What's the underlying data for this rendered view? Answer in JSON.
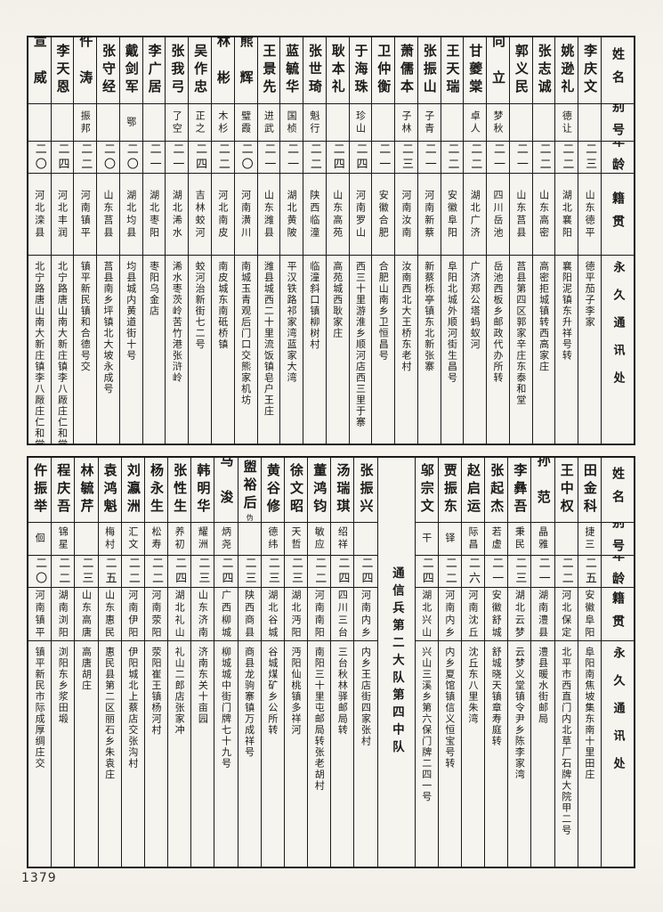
{
  "page_number": "1379",
  "colors": {
    "paper": "#f5f3ec",
    "ink": "#1a1a1a"
  },
  "headers": {
    "name": "姓名",
    "alias": "别号",
    "age": "年龄",
    "origin": "籍贯",
    "address": "永久通讯处"
  },
  "sections": [
    {
      "people": [
        {
          "name": "李庆文",
          "alias": "",
          "age": "二三",
          "origin": "山东德平",
          "address": "德平茄子李家"
        },
        {
          "name": "姚逊礼",
          "alias": "德让",
          "age": "二二",
          "origin": "湖北襄阳",
          "address": "襄阳泥镇东升祥号转"
        },
        {
          "name": "张志诚",
          "alias": "",
          "age": "二二",
          "origin": "山东高密",
          "address": "高密拒城镇转西高家庄"
        },
        {
          "name": "郭义民",
          "alias": "",
          "age": "二一",
          "origin": "山东莒县",
          "address": "莒县第四区郭家辛庄东泰和堂"
        },
        {
          "name": "向立",
          "alias": "梦秋",
          "age": "二一",
          "origin": "四川岳池",
          "address": "岳池西板乡邮政代办所转"
        },
        {
          "name": "甘夔棠",
          "alias": "卓人",
          "age": "二二",
          "origin": "湖北广济",
          "address": "广济郑公塔蚂蚁河"
        },
        {
          "name": "王天瑞",
          "alias": "",
          "age": "二二",
          "origin": "安徽阜阳",
          "address": "阜阳北城外顺河街生昌号"
        },
        {
          "name": "张振山",
          "alias": "子青",
          "age": "二一",
          "origin": "河南新蔡",
          "address": "新蔡栎亭镇东北新张寨"
        },
        {
          "name": "萧儒本",
          "alias": "子林",
          "age": "二三",
          "origin": "河南汝南",
          "address": "汝南西北大王桥东老村"
        },
        {
          "name": "卫仲衡",
          "alias": "",
          "age": "二一",
          "origin": "安徽合肥",
          "address": "合肥山南乡卫恒昌号"
        },
        {
          "name": "于海珠",
          "alias": "珍山",
          "age": "二四",
          "origin": "河南罗山",
          "address": "西三十里游淮乡顺河店西三里于寨"
        },
        {
          "name": "耿本礼",
          "alias": "",
          "age": "二四",
          "origin": "山东高苑",
          "address": "高苑城西耿家庄"
        },
        {
          "name": "张世琦",
          "alias": "魁行",
          "age": "二二",
          "origin": "陕西临潼",
          "address": "临潼斜口镇柳树村"
        },
        {
          "name": "蓝毓华",
          "alias": "国桢",
          "age": "二一",
          "origin": "湖北黄陂",
          "address": "平汉铁路祁家湾蓝家大湾"
        },
        {
          "name": "王景先",
          "alias": "进武",
          "age": "二一",
          "origin": "山东潍县",
          "address": "潍县城西二十里流饭镇皂户王庄"
        },
        {
          "name": "熊辉",
          "alias": "璧霞",
          "age": "二〇",
          "origin": "河南潢川",
          "address": "南城玉青观后门口交熊家机坊"
        },
        {
          "name": "林彬",
          "alias": "木杉",
          "age": "二二",
          "origin": "河北南皮",
          "address": "南皮城东南砥桥镇"
        },
        {
          "name": "吴作忠",
          "alias": "正之",
          "age": "二四",
          "origin": "吉林蛟河",
          "address": "蛟河治新街七二号"
        },
        {
          "name": "张我弓",
          "alias": "了空",
          "age": "二一",
          "origin": "湖北浠水",
          "address": "浠水枣茨岭苦竹港张浒岭"
        },
        {
          "name": "李广居",
          "alias": "",
          "age": "二一",
          "origin": "湖北枣阳",
          "address": "枣阳乌金店"
        },
        {
          "name": "戴剑军",
          "alias": "鄂",
          "age": "二〇",
          "origin": "湖北均县",
          "address": "均县城内黄道街十号"
        },
        {
          "name": "张守经",
          "alias": "",
          "age": "二〇",
          "origin": "山东莒县",
          "address": "莒县南乡坪镇北大坡永成号"
        },
        {
          "name": "仵涛",
          "alias": "振邦",
          "age": "二二",
          "origin": "河南镇平",
          "address": "镇平新民镇和合德号交"
        },
        {
          "name": "李天恩",
          "alias": "",
          "age": "二四",
          "origin": "河北丰润",
          "address": "北宁路唐山南大新庄镇李八厰庄仁和堂"
        },
        {
          "name": "宣威",
          "alias": "",
          "age": "二〇",
          "origin": "河北滦县",
          "address": "北宁路唐山南大新庄镇李八厰庄仁和堂"
        }
      ]
    },
    {
      "people": [
        {
          "name": "田金科",
          "alias": "捷三",
          "age": "二五",
          "origin": "安徽阜阳",
          "address": "阜阳南焦坡集东南十里田庄"
        },
        {
          "name": "王中权",
          "alias": "",
          "age": "二二",
          "origin": "河北保定",
          "address": "北平市西直门内北草厂石牌大院甲二号"
        },
        {
          "name": "孙范",
          "alias": "晶雅",
          "age": "二一",
          "origin": "湖南澧县",
          "address": "澧县暖水街邮局"
        },
        {
          "name": "李彝吾",
          "alias": "秉民",
          "age": "二三",
          "origin": "湖北云梦",
          "address": "云梦义堂镇令尹乡陈李家湾"
        },
        {
          "name": "张起杰",
          "alias": "若虚",
          "age": "二一",
          "origin": "安徽舒城",
          "address": "舒城晓天镇章寿庭转"
        },
        {
          "name": "赵启运",
          "alias": "际昌",
          "age": "二六",
          "origin": "河南沈丘",
          "address": "沈丘东八里朱湾"
        },
        {
          "name": "贾振东",
          "alias": "铎",
          "age": "二二",
          "origin": "河南内乡",
          "address": "内乡夏馆镇信义恒宝号转"
        },
        {
          "name": "邬宗文",
          "alias": "干",
          "age": "二四",
          "origin": "湖北兴山",
          "address": "兴山三溪乡第六保门牌二四一号"
        },
        {
          "type": "unit",
          "label": "通信兵第二大队第四中队"
        },
        {
          "name": "张振兴",
          "alias": "",
          "age": "二四",
          "origin": "河南内乡",
          "address": "内乡王店街四家张村"
        },
        {
          "name": "汤瑞琪",
          "alias": "绍祥",
          "age": "二四",
          "origin": "四川三台",
          "address": "三台秋林驿邮局转"
        },
        {
          "name": "董鸿钧",
          "alias": "敏应",
          "age": "二二",
          "origin": "河南南阳",
          "address": "南阳三十里屯邮局转张老胡村"
        },
        {
          "name": "徐文昭",
          "alias": "天哲",
          "age": "二三",
          "origin": "湖北沔阳",
          "address": "沔阳仙桃镇多祥河"
        },
        {
          "name": "黄谷修",
          "alias": "德纬",
          "age": "二三",
          "origin": "湖北谷城",
          "address": "谷城煤矿乡公所转"
        },
        {
          "name": "盥裕后",
          "alias": "",
          "note": "伪",
          "age": "二三",
          "origin": "陕西商县",
          "address": "商县龙驹寨镇万成祥号"
        },
        {
          "name": "马浚",
          "alias": "炳尧",
          "age": "二四",
          "origin": "广西柳城",
          "address": "柳城城中街门牌七十九号"
        },
        {
          "name": "韩明华",
          "alias": "耀洲",
          "age": "二三",
          "origin": "山东济南",
          "address": "济南东关十亩园"
        },
        {
          "name": "张性生",
          "alias": "养初",
          "age": "二四",
          "origin": "湖北礼山",
          "address": "礼山二郎店张家冲"
        },
        {
          "name": "杨永生",
          "alias": "松寿",
          "age": "二二",
          "origin": "河南荥阳",
          "address": "荥阳崔王镇杨河村"
        },
        {
          "name": "刘瀛洲",
          "alias": "汇文",
          "age": "二二",
          "origin": "河南伊阳",
          "address": "伊阳城北上蔡店交张沟村"
        },
        {
          "name": "袁鸿魁",
          "alias": "梅村",
          "age": "二五",
          "origin": "山东惠民",
          "address": "惠民县第二区丽石乡朱袁庄"
        },
        {
          "name": "林毓芹",
          "alias": "",
          "age": "二三",
          "origin": "山东高唐",
          "address": "高唐胡庄"
        },
        {
          "name": "程庆吾",
          "alias": "锦星",
          "age": "二二",
          "origin": "湖南浏阳",
          "address": "浏阳东乡浆田塅"
        },
        {
          "name": "仵振举",
          "alias": "佪",
          "age": "二〇",
          "origin": "河南镇平",
          "address": "镇平新民市际成厚绸庄交"
        }
      ]
    }
  ]
}
